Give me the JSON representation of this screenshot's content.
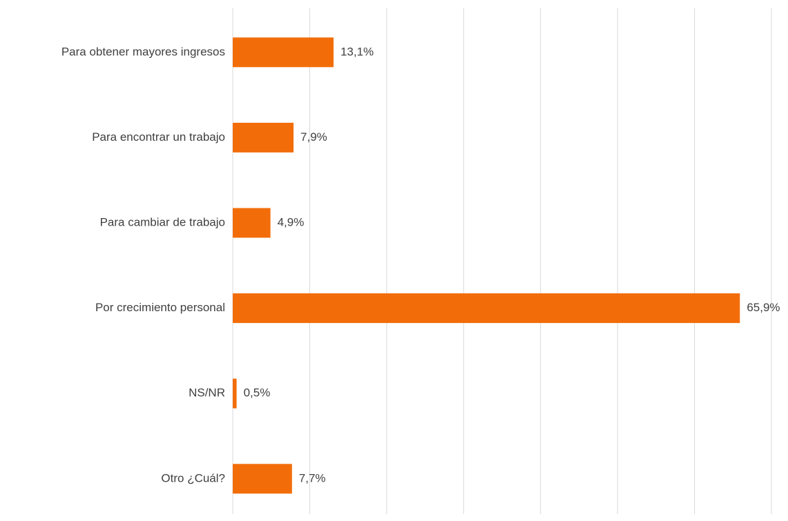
{
  "chart_data": {
    "type": "hbar",
    "categories": [
      "Para obtener mayores ingresos",
      "Para encontrar un trabajo",
      "Para cambiar de trabajo",
      "Por crecimiento personal",
      "NS/NR",
      "Otro ¿Cuál?"
    ],
    "values": [
      13.1,
      7.9,
      4.9,
      65.9,
      0.5,
      7.7
    ],
    "value_labels": [
      "13,1%",
      "7,9%",
      "4,9%",
      "65,9%",
      "0,5%",
      "7,7%"
    ],
    "color": "#f26d0a",
    "xlim": [
      0,
      70
    ],
    "xticks": [
      0,
      10,
      20,
      30,
      40,
      50,
      60,
      70
    ],
    "grid": true
  }
}
